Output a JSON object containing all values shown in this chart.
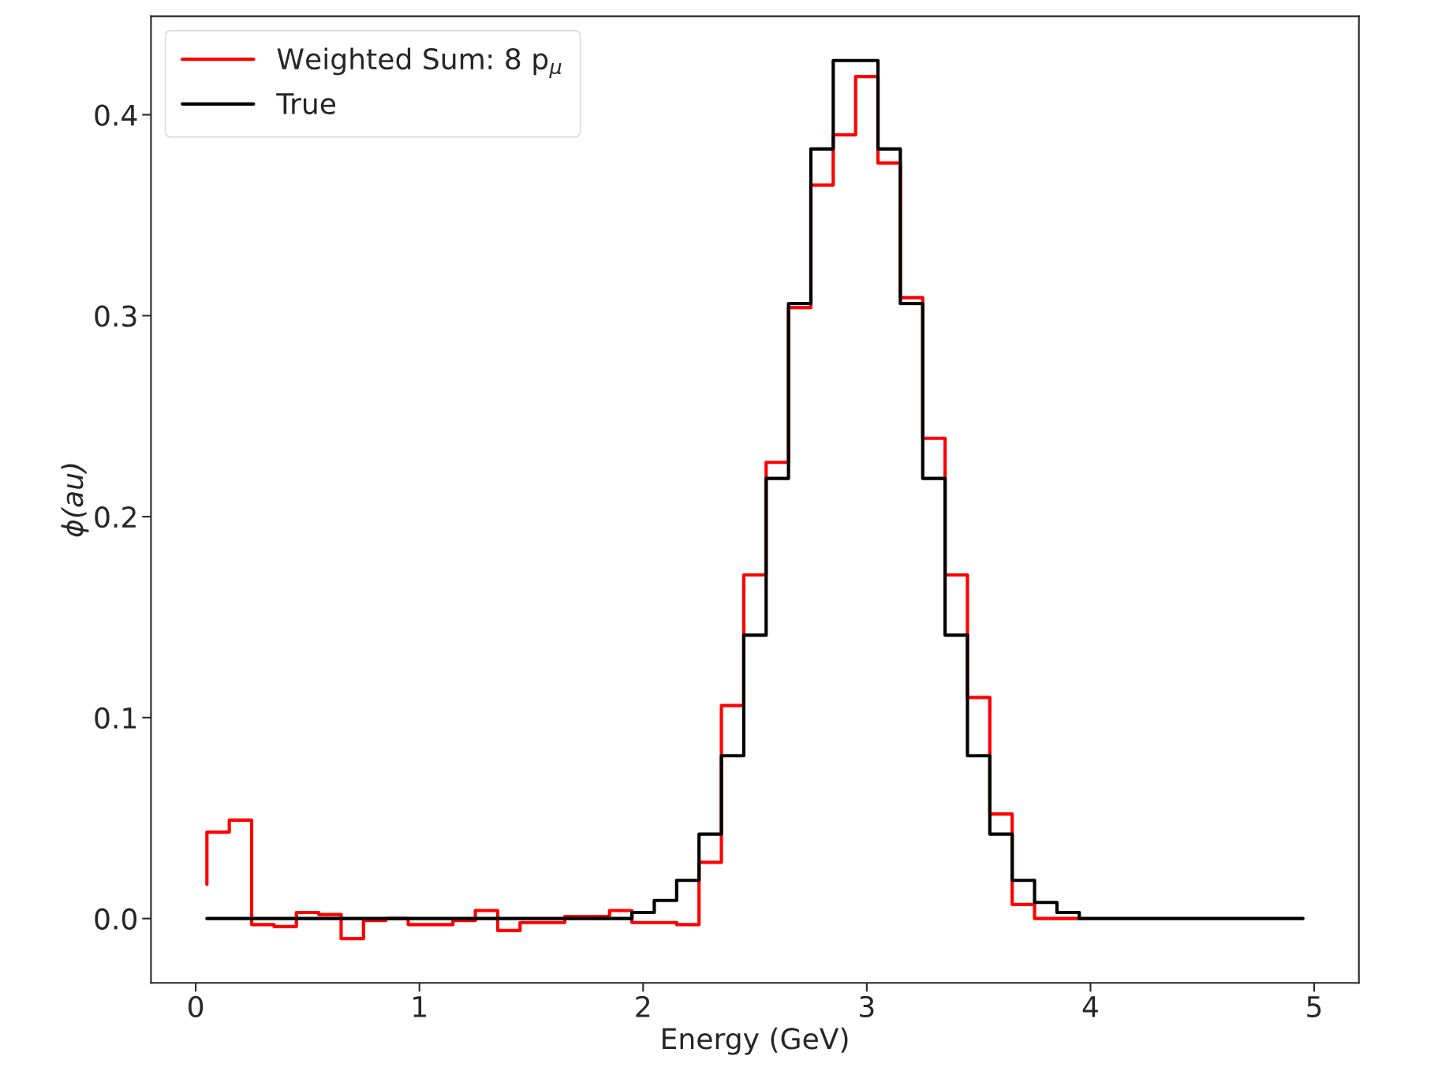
{
  "chart_data": {
    "type": "step",
    "xlabel": "Energy (GeV)",
    "ylabel": "ϕ(au)",
    "xlim": [
      -0.2,
      5.2
    ],
    "xticks": [
      0,
      1,
      2,
      3,
      4,
      5
    ],
    "ylim": [
      -0.032,
      0.449
    ],
    "yticks": [
      {
        "value": 0,
        "label": "0.0"
      },
      0.1,
      0.2,
      0.3,
      0.4
    ],
    "legend": "top left",
    "grid": false,
    "series": [
      {
        "name": "Weighted Sum: 8 p$_{μ}$",
        "color": "#ff0000",
        "x": [
          0.05,
          0.15,
          0.25,
          0.35,
          0.45,
          0.55,
          0.65,
          0.75,
          0.85,
          0.95,
          1.05,
          1.15,
          1.25,
          1.35,
          1.45,
          1.55,
          1.65,
          1.75,
          1.85,
          1.95,
          2.05,
          2.15,
          2.25,
          2.35,
          2.45,
          2.55,
          2.65,
          2.75,
          2.85,
          2.95,
          3.05,
          3.15,
          3.25,
          3.35,
          3.45,
          3.55,
          3.65,
          3.75,
          3.85,
          3.95
        ],
        "values": [
          0.017,
          0.043,
          0.049,
          -0.003,
          -0.004,
          0.003,
          0.002,
          -0.01,
          -0.001,
          0.0,
          -0.003,
          -0.003,
          -0.001,
          0.004,
          -0.006,
          -0.002,
          -0.002,
          0.001,
          0.001,
          0.004,
          -0.002,
          -0.002,
          -0.003,
          0.028,
          0.106,
          0.171,
          0.227,
          0.304,
          0.365,
          0.39,
          0.419,
          0.376,
          0.309,
          0.239,
          0.171,
          0.11,
          0.052,
          0.007,
          0.0,
          0.0
        ]
      },
      {
        "name": "True",
        "color": "#000000",
        "x": [
          0.05,
          0.15,
          0.25,
          0.35,
          0.45,
          0.55,
          0.65,
          0.75,
          0.85,
          0.95,
          1.05,
          1.15,
          1.25,
          1.35,
          1.45,
          1.55,
          1.65,
          1.75,
          1.85,
          1.95,
          2.05,
          2.15,
          2.25,
          2.35,
          2.45,
          2.55,
          2.65,
          2.75,
          2.85,
          2.95,
          3.05,
          3.15,
          3.25,
          3.35,
          3.45,
          3.55,
          3.65,
          3.75,
          3.85,
          3.95,
          4.05,
          4.15,
          4.25,
          4.35,
          4.45,
          4.55,
          4.65,
          4.75,
          4.85,
          4.95
        ],
        "values": [
          0.0,
          0.0,
          0.0,
          0.0,
          0.0,
          0.0,
          0.0,
          0.0,
          0.0,
          0.0,
          0.0,
          0.0,
          0.0,
          0.0,
          0.0,
          0.0,
          0.0,
          0.0,
          0.0,
          0.0,
          0.003,
          0.009,
          0.019,
          0.042,
          0.081,
          0.141,
          0.219,
          0.306,
          0.383,
          0.427,
          0.427,
          0.383,
          0.306,
          0.219,
          0.141,
          0.081,
          0.042,
          0.019,
          0.008,
          0.003,
          0.0,
          0.0,
          0.0,
          0.0,
          0.0,
          0.0,
          0.0,
          0.0,
          0.0,
          0.0
        ]
      }
    ]
  }
}
